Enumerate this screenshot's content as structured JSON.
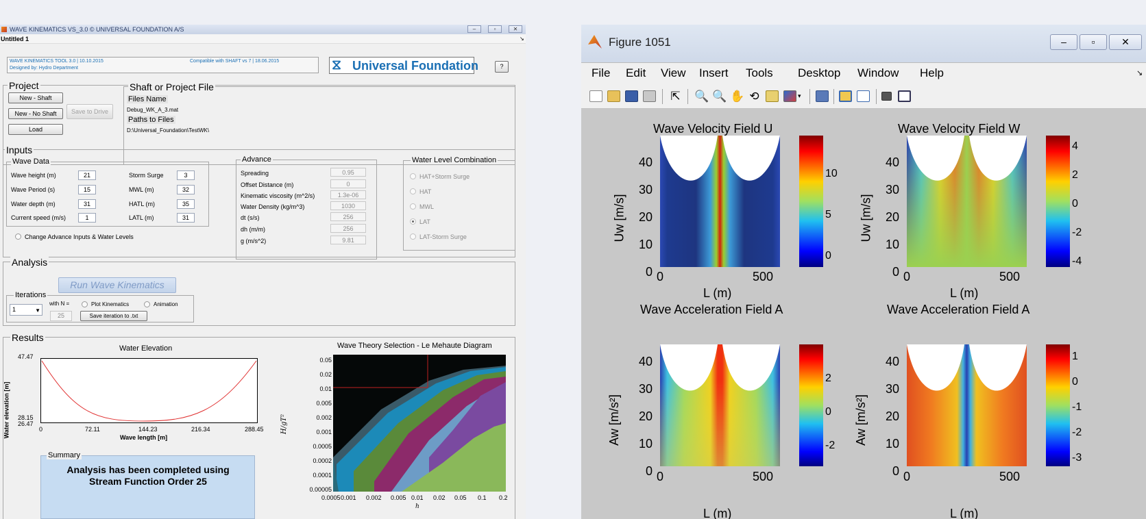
{
  "wk": {
    "title": "WAVE KINEMATICS VS_3.0 © UNIVERSAL FOUNDATION A/S",
    "menu": "Untitled 1",
    "header_left_line1": "WAVE KINEMATICS TOOL 3.0 | 10.10.2015",
    "header_left_line2": "Designed by: Hydro Department",
    "header_compat": "Compatible with SHAFT vs 7 | 18.06.2015",
    "logo_text": "Universal Foundation",
    "help_label": "?",
    "project": {
      "title": "Project",
      "new_shaft": "New - Shaft",
      "new_no_shaft": "New - No Shaft",
      "save_drive": "Save to Drive",
      "load": "Load"
    },
    "shaft_file": {
      "title": "Shaft or Project File",
      "files_name_label": "Files Name",
      "files_name_value": "Debug_WK_A_3.mat",
      "paths_label": "Paths to Files",
      "paths_value": "D:\\Universal_Foundation\\TestWK\\"
    },
    "inputs": {
      "title": "Inputs",
      "wave_data_title": "Wave Data",
      "wave_height_label": "Wave height (m)",
      "wave_height": "21",
      "wave_period_label": "Wave Period (s)",
      "wave_period": "15",
      "water_depth_label": "Water depth (m)",
      "water_depth": "31",
      "current_speed_label": "Current speed (m/s)",
      "current_speed": "1",
      "storm_surge_label": "Storm Surge",
      "storm_surge": "3",
      "mwl_label": "MWL (m)",
      "mwl": "32",
      "hatl_label": "HATL (m)",
      "hatl": "35",
      "latl_label": "LATL (m)",
      "latl": "31",
      "change_advance": "Change Advance Inputs & Water Levels",
      "advance_title": "Advance",
      "spreading_label": "Spreading",
      "spreading": "0.95",
      "offset_label": "Offset Distance (m)",
      "offset": "0",
      "kin_visc_label": "Kinematic viscosity (m^2/s)",
      "kin_visc": "1.3e-06",
      "density_label": "Water Density (kg/m^3)",
      "density": "1030",
      "dt_label": "dt (s/s)",
      "dt": "256",
      "dh_label": "dh (m/m)",
      "dh": "256",
      "g_label": "g (m/s^2)",
      "g": "9.81",
      "wlc_title": "Water Level Combination",
      "wlc_opts": [
        "HAT+Storm Surge",
        "HAT",
        "MWL",
        "LAT",
        "LAT-Storm Surge"
      ]
    },
    "analysis": {
      "title": "Analysis",
      "run_label": "Run Wave Kinematics",
      "iterations_title": "Iterations",
      "iter_value": "1",
      "with_n_label": "with N =",
      "n_value": "25",
      "plot_kin": "Plot Kinematics",
      "animation": "Animation",
      "save_iter": "Save iteration to .txt"
    },
    "results": {
      "title": "Results",
      "water_title": "Water Elevation",
      "water_ylabel": "Water elevation [m]",
      "water_xlabel": "Wave length [m]",
      "water_yticks": [
        "47.47",
        "28.15",
        "26.47"
      ],
      "water_xticks": [
        "0",
        "72.11",
        "144.23",
        "216.34",
        "288.45"
      ],
      "lm_title": "Wave Theory Selection - Le Mehaute Diagram",
      "lm_yticks": [
        "0.05",
        "0.02",
        "0.01",
        "0.005",
        "0.002",
        "0.001",
        "0.0005",
        "0.0002",
        "0.0001",
        "0.00005"
      ],
      "lm_xticks": [
        "0.0005",
        "0.001",
        "0.002",
        "0.005",
        "0.01",
        "0.02",
        "0.05",
        "0.1",
        "0.2"
      ],
      "lm_xlabel": "h",
      "summary_title": "Summary",
      "summary_text": "Analysis has been completed using Stream Function Order 25"
    }
  },
  "fig": {
    "title": "Figure 1051",
    "menu": [
      "File",
      "Edit",
      "View",
      "Insert",
      "Tools",
      "Desktop",
      "Window",
      "Help"
    ],
    "plots": [
      {
        "title": "Wave Velocity Field U",
        "ylabel": "Uw [m/s]",
        "xlabel": "L (m)",
        "cb": [
          "10",
          "5",
          "0"
        ]
      },
      {
        "title": "Wave Velocity Field W",
        "ylabel": "Uw [m/s]",
        "xlabel": "L (m)",
        "cb": [
          "4",
          "2",
          "0",
          "-2",
          "-4"
        ]
      },
      {
        "title": "Wave Acceleration Field A",
        "ylabel": "Aw [m/s²]",
        "xlabel": "L (m)",
        "cb": [
          "2",
          "0",
          "-2"
        ]
      },
      {
        "title": "Wave Acceleration Field A",
        "ylabel": "Aw [m/s²]",
        "xlabel": "L (m)",
        "cb": [
          "1",
          "0",
          "-1",
          "-2",
          "-3"
        ]
      }
    ],
    "yticks": [
      "40",
      "30",
      "20",
      "10",
      "0"
    ],
    "xticks": [
      "0",
      "500"
    ]
  },
  "colors": {
    "accent": "#1a6fb4",
    "jet_low": "#1f2f8f",
    "jet_high": "#a50f15"
  }
}
